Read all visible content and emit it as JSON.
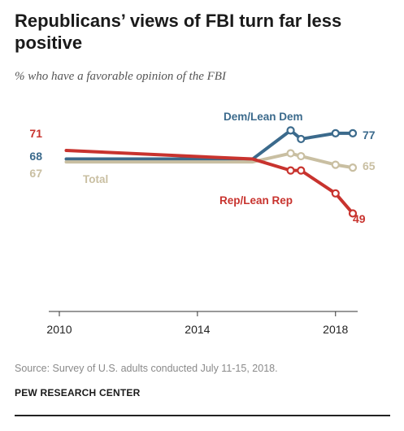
{
  "title": "Republicans’ views of FBI turn far less positive",
  "subtitle": "% who have a favorable opinion of the FBI",
  "source": "Source: Survey of U.S. adults conducted July 11-15, 2018.",
  "organization": "PEW RESEARCH CENTER",
  "chart_data": {
    "type": "line",
    "x": [
      2010.2,
      2015.6,
      2016.7,
      2017.0,
      2018.0,
      2018.5
    ],
    "xlim": [
      2010,
      2019
    ],
    "xticks": [
      "2010",
      "2014",
      "2018"
    ],
    "ylim": [
      30,
      90
    ],
    "series": [
      {
        "name": "Dem/Lean Dem",
        "color": "#3b6a8c",
        "values": [
          68,
          68,
          78,
          75,
          77,
          77
        ],
        "start_label": "68",
        "end_label": "77",
        "markers": [
          false,
          false,
          true,
          true,
          true,
          true
        ]
      },
      {
        "name": "Total",
        "color": "#c9bfa2",
        "values": [
          67,
          67,
          70,
          69,
          66,
          65
        ],
        "start_label": "67",
        "end_label": "65",
        "markers": [
          false,
          false,
          true,
          true,
          true,
          true
        ]
      },
      {
        "name": "Rep/Lean Rep",
        "color": "#c8332e",
        "values": [
          71,
          68,
          64,
          64,
          56,
          49
        ],
        "start_label": "71",
        "end_label": "49",
        "markers": [
          false,
          false,
          true,
          true,
          true,
          true
        ]
      }
    ],
    "grid": false,
    "legend": "inline labels"
  }
}
